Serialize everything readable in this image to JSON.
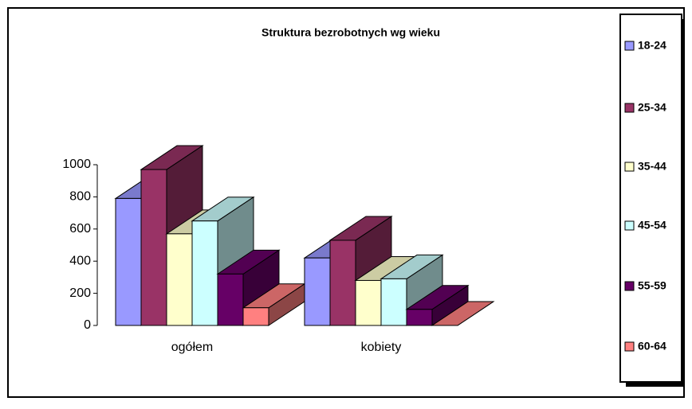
{
  "chart_data": {
    "type": "bar3d",
    "title": "Struktura bezrobotnych wg wieku",
    "categories": [
      "ogółem",
      "kobiety"
    ],
    "series": [
      {
        "name": "18-24",
        "color": "#9999ff",
        "values": [
          790,
          420
        ]
      },
      {
        "name": "25-34",
        "color": "#993366",
        "values": [
          970,
          530
        ]
      },
      {
        "name": "35-44",
        "color": "#ffffcc",
        "values": [
          570,
          280
        ]
      },
      {
        "name": "45-54",
        "color": "#ccffff",
        "values": [
          650,
          290
        ]
      },
      {
        "name": "55-59",
        "color": "#660066",
        "values": [
          320,
          100
        ]
      },
      {
        "name": "60-64",
        "color": "#ff8080",
        "values": [
          110,
          0
        ]
      }
    ],
    "ylim": [
      0,
      1000
    ],
    "yticks": [
      0,
      200,
      400,
      600,
      800,
      1000
    ],
    "legend": "right"
  }
}
